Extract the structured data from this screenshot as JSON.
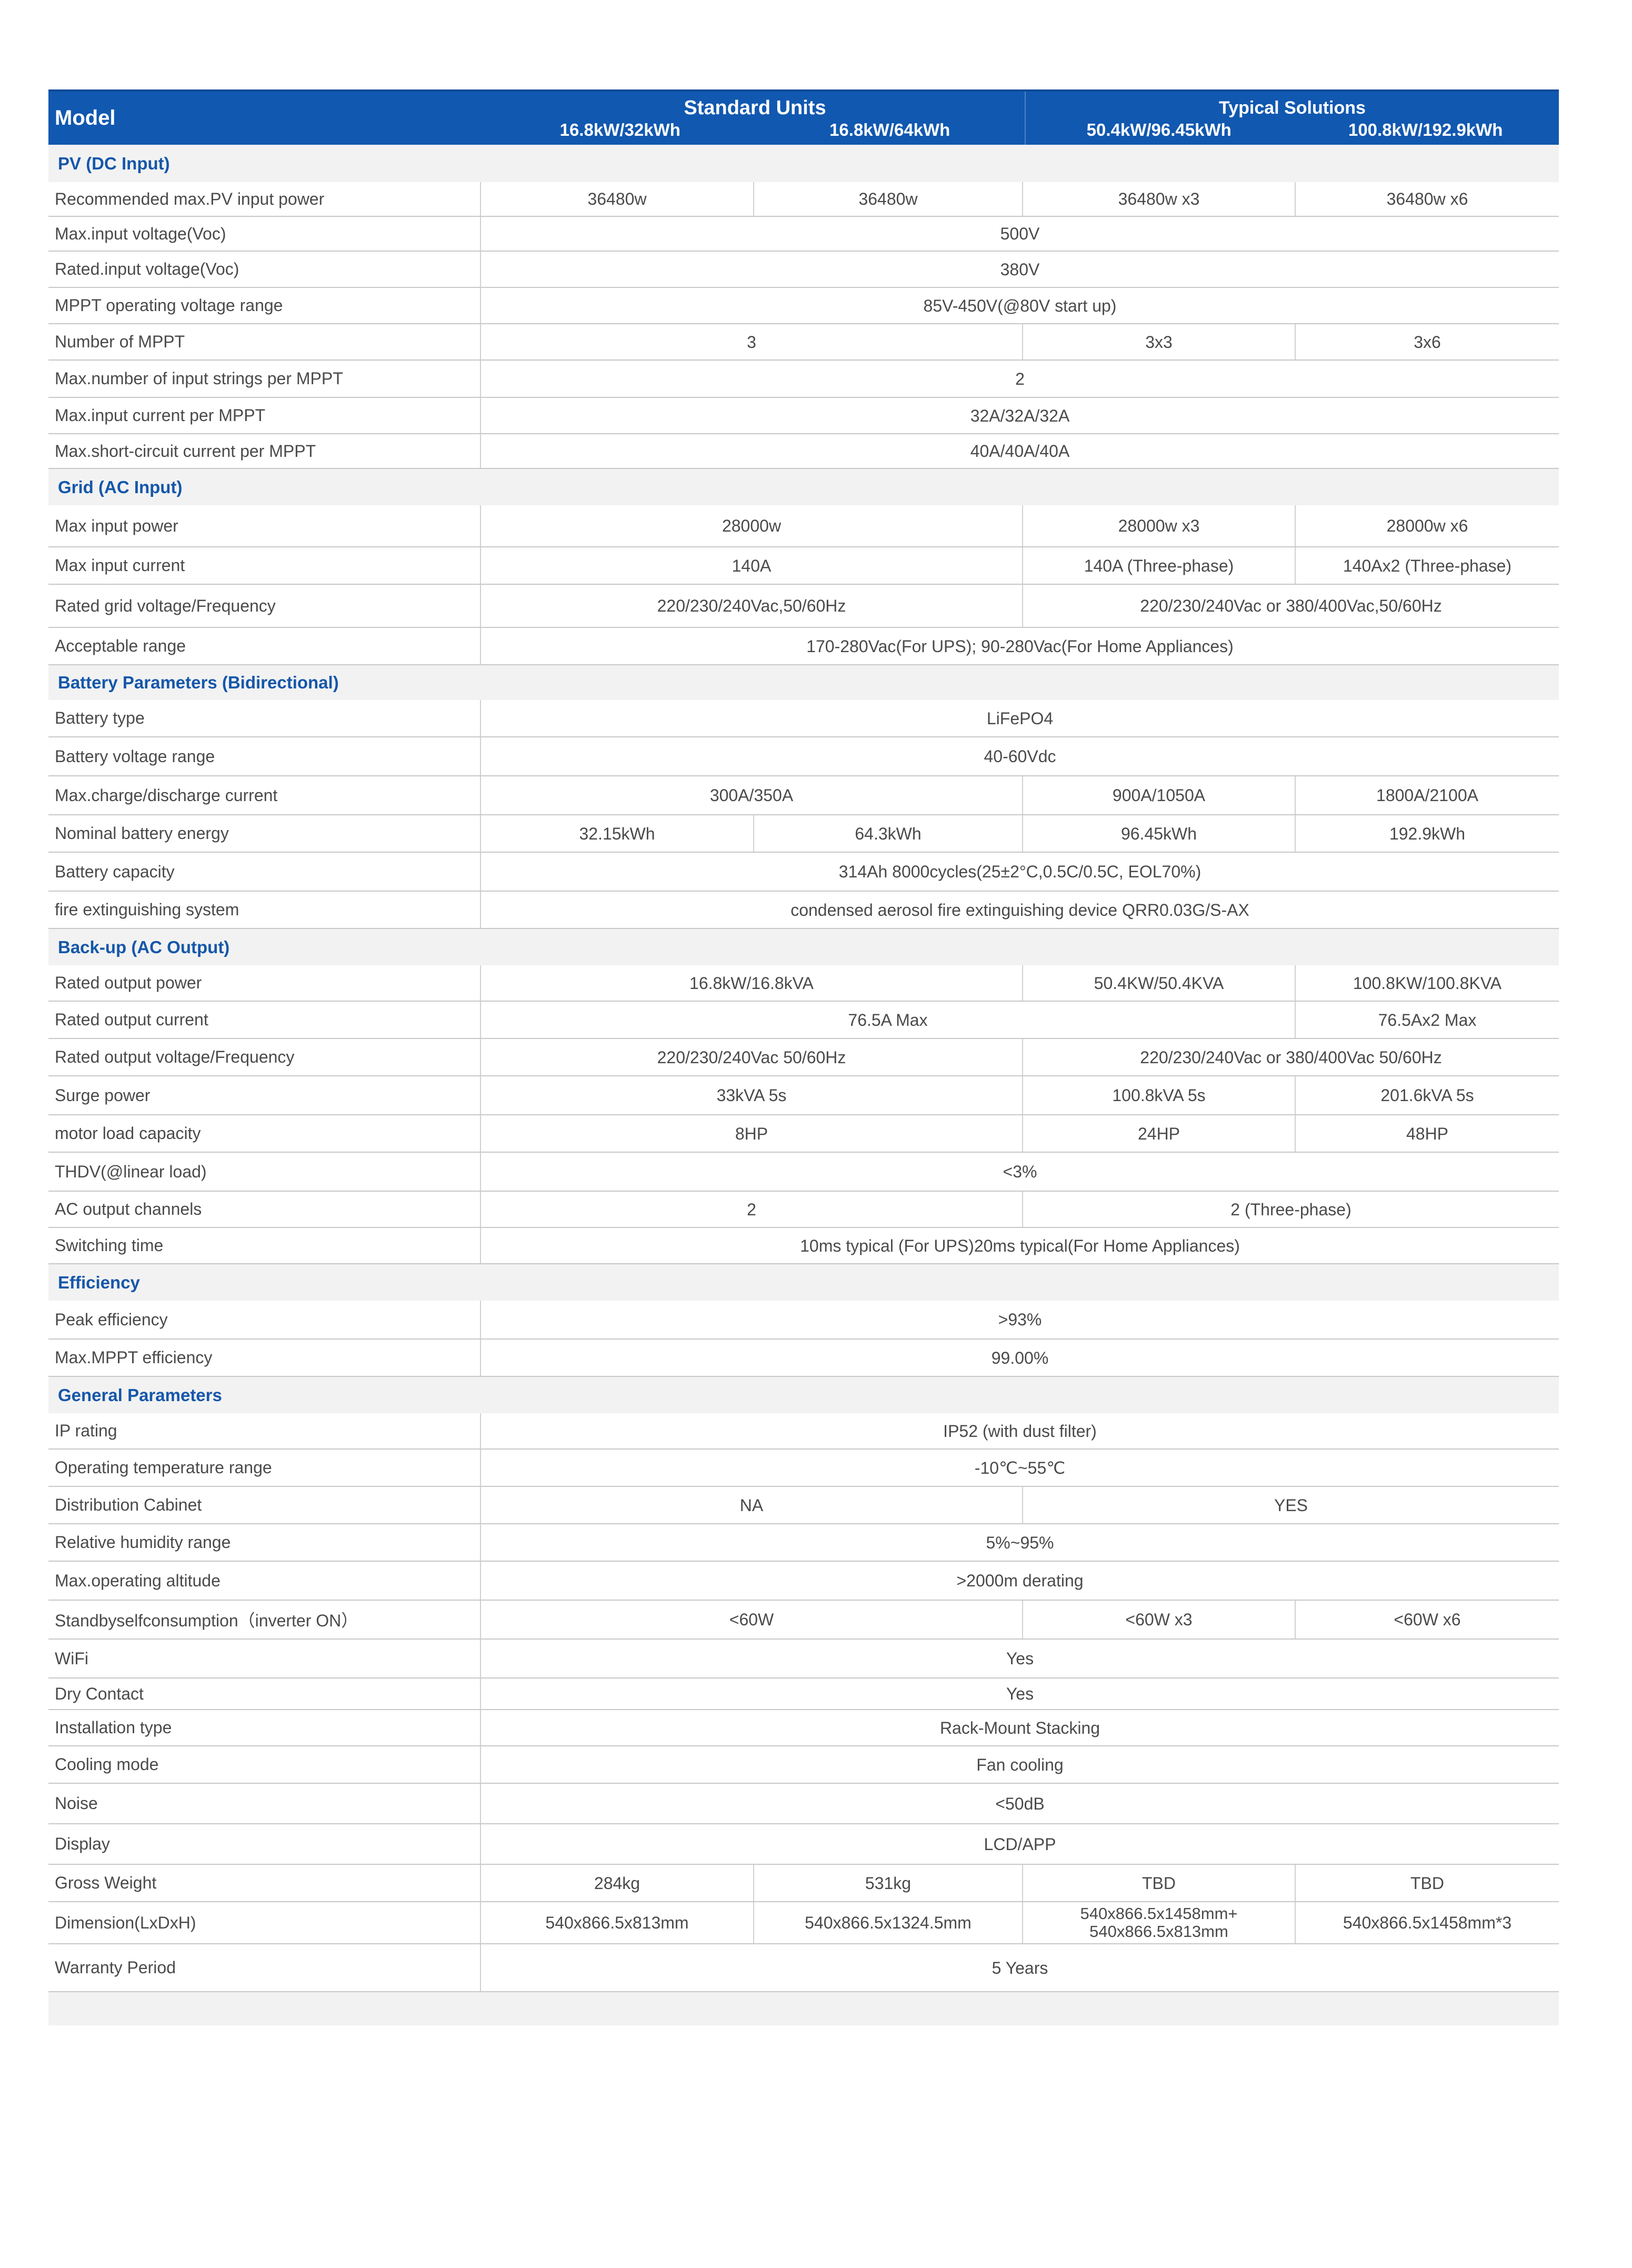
{
  "header": {
    "model_label": "Model",
    "groups": [
      {
        "title": "Standard Units",
        "models": [
          "16.8kW/32kWh",
          "16.8kW/64kWh"
        ]
      },
      {
        "title": "Typical Solutions",
        "models": [
          "50.4kW/96.45kWh",
          "100.8kW/192.9kWh"
        ]
      }
    ]
  },
  "colors": {
    "header_bg": "#1158b0",
    "section_text": "#1557aa",
    "section_bg": "#f2f2f2"
  },
  "rows": [
    {
      "section": "PV (DC  Input)"
    },
    {
      "label": "Recommended max.PV input power",
      "cells": [
        "36480w",
        "36480w",
        "36480w x3",
        "36480w x6"
      ]
    },
    {
      "label": "Max.input voltage(Voc)",
      "cells": [
        "500V"
      ]
    },
    {
      "label": "Rated.input voltage(Voc)",
      "cells": [
        "380V"
      ]
    },
    {
      "label": "MPPT operating voltage range",
      "cells": [
        "85V-450V(@80V start up)"
      ]
    },
    {
      "label": "Number of MPPT",
      "cells": [
        "3",
        "3x3",
        "3x6"
      ]
    },
    {
      "label": "Max.number of input strings per MPPT",
      "cells": [
        "2"
      ]
    },
    {
      "label": "Max.input current per MPPT",
      "cells": [
        "32A/32A/32A"
      ]
    },
    {
      "label": "Max.short-circuit current per MPPT",
      "cells": [
        "40A/40A/40A"
      ]
    },
    {
      "section": "Grid (AC  Input)"
    },
    {
      "label": "Max input power",
      "cells": [
        "28000w",
        "28000w x3",
        "28000w x6"
      ]
    },
    {
      "label": "Max input current",
      "cells": [
        "140A",
        "140A (Three-phase)",
        "140Ax2 (Three-phase)"
      ]
    },
    {
      "label": "Rated grid voltage/Frequency",
      "cells": [
        "220/230/240Vac,50/60Hz",
        "220/230/240Vac or 380/400Vac,50/60Hz"
      ]
    },
    {
      "label": "Acceptable range",
      "cells": [
        "170-280Vac(For UPS); 90-280Vac(For Home Appliances)"
      ]
    },
    {
      "section": "Battery Parameters (Bidirectional)"
    },
    {
      "label": "Battery type",
      "cells": [
        "LiFePO4"
      ]
    },
    {
      "label": "Battery voltage range",
      "cells": [
        "40-60Vdc"
      ]
    },
    {
      "label": "Max.charge/discharge current",
      "cells": [
        "300A/350A",
        "900A/1050A",
        "1800A/2100A"
      ]
    },
    {
      "label": "Nominal battery energy",
      "cells": [
        "32.15kWh",
        "64.3kWh",
        "96.45kWh",
        "192.9kWh"
      ]
    },
    {
      "label": "Battery capacity",
      "cells": [
        "314Ah 8000cycles(25±2°C,0.5C/0.5C, EOL70%)"
      ]
    },
    {
      "label": "fire extinguishing system",
      "cells": [
        "condensed aerosol fire extinguishing device QRR0.03G/S-AX"
      ]
    },
    {
      "section": "Back-up (AC  Output)"
    },
    {
      "label": "Rated output power",
      "cells": [
        "16.8kW/16.8kVA",
        "50.4KW/50.4KVA",
        "100.8KW/100.8KVA"
      ]
    },
    {
      "label": "Rated output current",
      "cells": [
        "76.5A Max",
        "76.5Ax2 Max"
      ]
    },
    {
      "label": "Rated output voltage/Frequency",
      "cells": [
        "220/230/240Vac 50/60Hz",
        "220/230/240Vac or 380/400Vac 50/60Hz"
      ]
    },
    {
      "label": "Surge power",
      "cells": [
        "33kVA 5s",
        "100.8kVA 5s",
        "201.6kVA 5s"
      ]
    },
    {
      "label": "motor load capacity",
      "cells": [
        "8HP",
        "24HP",
        "48HP"
      ]
    },
    {
      "label": "THDV(@linear load)",
      "cells": [
        "<3%"
      ]
    },
    {
      "label": "AC output channels",
      "cells": [
        "2",
        "2 (Three-phase)"
      ]
    },
    {
      "label": "Switching time",
      "cells": [
        "10ms typical (For UPS)20ms typical(For Home Appliances)"
      ]
    },
    {
      "section": "Efficiency"
    },
    {
      "label": "Peak efficiency",
      "cells": [
        ">93%"
      ]
    },
    {
      "label": "Max.MPPT efficiency",
      "cells": [
        "99.00%"
      ]
    },
    {
      "section": "General Parameters"
    },
    {
      "label": "IP rating",
      "cells": [
        "IP52 (with dust filter)"
      ]
    },
    {
      "label": "Operating temperature range",
      "cells": [
        "-10℃~55℃"
      ]
    },
    {
      "label": "Distribution Cabinet",
      "cells": [
        "NA",
        "YES"
      ]
    },
    {
      "label": "Relative humidity range",
      "cells": [
        "5%~95%"
      ]
    },
    {
      "label": "Max.operating altitude",
      "cells": [
        ">2000m derating"
      ]
    },
    {
      "label": "Standbyselfconsumption（inverter ON）",
      "cells": [
        "<60W",
        "<60W x3",
        "<60W x6"
      ]
    },
    {
      "label": "WiFi",
      "cells": [
        "Yes"
      ]
    },
    {
      "label": "Dry Contact",
      "cells": [
        "Yes"
      ]
    },
    {
      "label": "Installation type",
      "cells": [
        "Rack-Mount Stacking"
      ]
    },
    {
      "label": "Cooling mode",
      "cells": [
        "Fan cooling"
      ]
    },
    {
      "label": "Noise",
      "cells": [
        "<50dB"
      ]
    },
    {
      "label": "Display",
      "cells": [
        "LCD/APP"
      ]
    },
    {
      "label": "Gross Weight",
      "cells": [
        "284kg",
        "531kg",
        "TBD",
        "TBD"
      ]
    },
    {
      "label": "Dimension(LxDxH)",
      "cells": [
        "540x866.5x813mm",
        "540x866.5x1324.5mm",
        "540x866.5x1458mm+ 540x866.5x813mm",
        "540x866.5x1458mm*3"
      ]
    },
    {
      "label": "Warranty Period",
      "cells": [
        "5 Years"
      ]
    }
  ]
}
